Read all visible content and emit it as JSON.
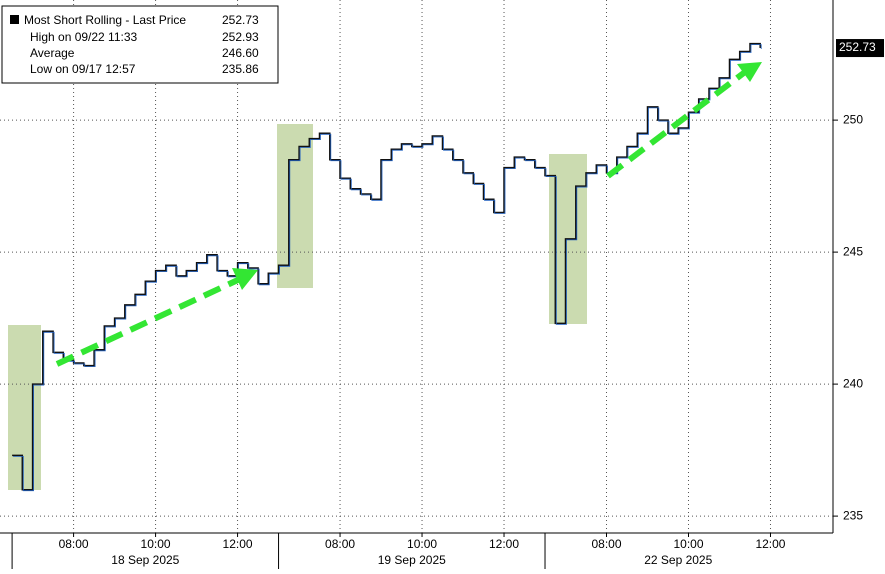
{
  "chart_data": {
    "type": "line",
    "legend": {
      "title": "Most Short Rolling - Last Price",
      "title_value": "252.73",
      "entries": [
        {
          "label": "High on 09/22 11:33",
          "value": "252.93"
        },
        {
          "label": "Average",
          "value": "246.60"
        },
        {
          "label": "Low on 09/17 12:57",
          "value": "235.86"
        }
      ]
    },
    "dates": [
      "18 Sep 2025",
      "19 Sep 2025",
      "22 Sep 2025"
    ],
    "series": [
      {
        "name": "Most Short Rolling - Last Price",
        "color": "#1f5fbf",
        "x": [
          0,
          0.5,
          1,
          1.5,
          2,
          2.5,
          3,
          3.5,
          4,
          4.5,
          5,
          5.5,
          6,
          6.5,
          7,
          7.5,
          8,
          8.5,
          9,
          9.5,
          10,
          10.5,
          11,
          11.5,
          12,
          12.5,
          13,
          13.5,
          14,
          14.5,
          15,
          15.5,
          16,
          16.5,
          17,
          17.5,
          18,
          18.5,
          19,
          19.5,
          20,
          20.5,
          21,
          21.5,
          22,
          22.5,
          23,
          23.5,
          24,
          24.5,
          25,
          25.5,
          26,
          26.5,
          27,
          27.5,
          28,
          28.5,
          29,
          29.5,
          30,
          30.5,
          31,
          31.5,
          32,
          32.5,
          33,
          33.5,
          34,
          34.5,
          35,
          35.5,
          36,
          36.5
        ],
        "values": [
          237.3,
          236.0,
          240.0,
          242.0,
          241.2,
          240.9,
          240.8,
          240.7,
          241.3,
          242.2,
          242.5,
          243.0,
          243.4,
          243.9,
          244.3,
          244.5,
          244.1,
          244.3,
          244.6,
          244.9,
          244.3,
          244.1,
          244.6,
          244.4,
          243.8,
          244.2,
          244.5,
          248.5,
          249.0,
          249.3,
          249.5,
          248.5,
          247.8,
          247.4,
          247.2,
          247.0,
          248.5,
          248.9,
          249.1,
          249.0,
          249.1,
          249.4,
          248.9,
          248.5,
          248.0,
          247.6,
          247.0,
          246.5,
          248.2,
          248.6,
          248.5,
          248.2,
          247.9,
          242.3,
          245.5,
          247.5,
          248.0,
          248.3,
          248.0,
          248.6,
          249.0,
          249.5,
          250.5,
          250.0,
          249.5,
          249.7,
          250.3,
          250.8,
          251.2,
          251.6,
          252.3,
          252.6,
          252.9,
          252.73
        ],
        "value_labels": {
          "73": "252.73"
        }
      }
    ],
    "xlim": [
      -0.59,
      40.05
    ],
    "xticks": [
      {
        "value": 3,
        "label": "08:00"
      },
      {
        "value": 7,
        "label": "10:00"
      },
      {
        "value": 11,
        "label": "12:00"
      },
      {
        "value": 16,
        "label": "08:00"
      },
      {
        "value": 20,
        "label": "10:00"
      },
      {
        "value": 24,
        "label": "12:00"
      },
      {
        "value": 29,
        "label": "08:00"
      },
      {
        "value": 33,
        "label": "10:00"
      },
      {
        "value": 37,
        "label": "12:00"
      }
    ],
    "ylim": [
      234.36,
      254.55
    ],
    "yticks": [
      235,
      240,
      245,
      250
    ],
    "grid": true
  }
}
